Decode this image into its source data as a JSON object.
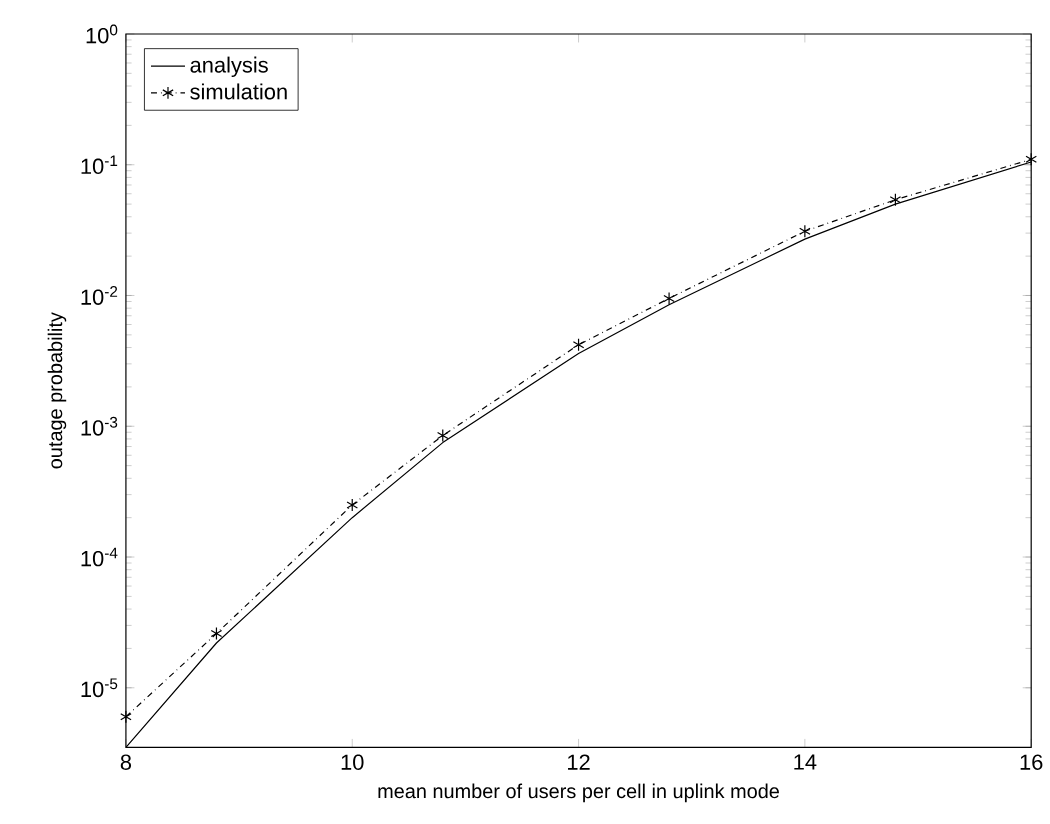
{
  "chart_data": {
    "type": "line",
    "xlabel": "mean number of users per cell in uplink mode",
    "ylabel": "outage probability",
    "log": "y",
    "xlim": [
      8,
      16
    ],
    "xticks": [
      8,
      10,
      12,
      14,
      16
    ],
    "ylim": [
      3.5e-06,
      1
    ],
    "yticks": [
      {
        "value": 1e-05,
        "label": "10$^{-5}$"
      },
      {
        "value": 0.0001,
        "label": "10$^{-4}$"
      },
      {
        "value": 0.001,
        "label": "10$^{-3}$"
      },
      {
        "value": 0.01,
        "label": "10$^{-2}$"
      },
      {
        "value": 0.1,
        "label": "10$^{-1}$"
      },
      {
        "value": 1,
        "label": "10$^{0}$"
      }
    ],
    "grid": false,
    "legend": "top left",
    "x": [
      8,
      8.8,
      10,
      10.8,
      12,
      12.8,
      14,
      14.8,
      16
    ],
    "series": [
      {
        "name": "analysis",
        "color": "#000000",
        "line_style": "solid",
        "marker": "none",
        "values": [
          3.5e-06,
          2.2e-05,
          0.0002,
          0.00075,
          0.0036,
          0.0085,
          0.027,
          0.05,
          0.105
        ]
      },
      {
        "name": "simulation",
        "color": "#000000",
        "line_style": "dashdot",
        "marker": "cross",
        "values": [
          6e-06,
          2.6e-05,
          0.00025,
          0.00085,
          0.0042,
          0.0095,
          0.031,
          0.054,
          0.11
        ]
      }
    ]
  }
}
